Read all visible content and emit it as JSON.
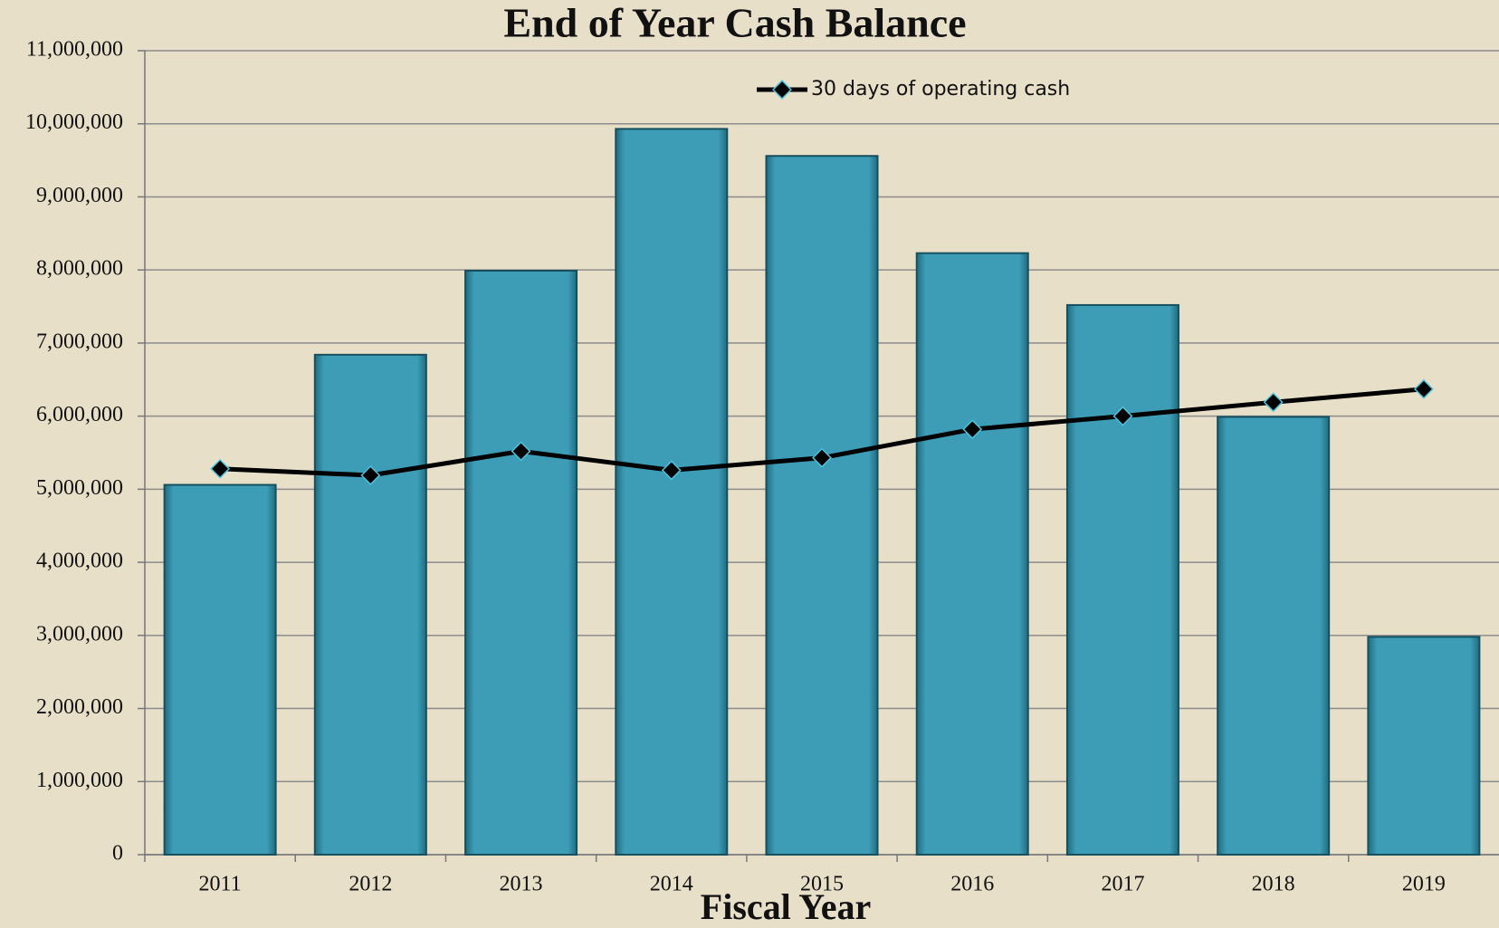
{
  "chart_data": {
    "type": "bar",
    "title": "End of Year Cash Balance",
    "x_label": "Fiscal Year",
    "categories": [
      "2011",
      "2012",
      "2013",
      "2014",
      "2015",
      "2016",
      "2017",
      "2018",
      "2019"
    ],
    "series": [
      {
        "type": "bar",
        "color": "#3d9db6",
        "values": [
          5060000,
          6840000,
          7990000,
          9930000,
          9560000,
          8230000,
          7520000,
          5990000,
          2980000
        ]
      },
      {
        "type": "line",
        "name": "30 days of operating cash",
        "color": "#000000",
        "values": [
          5280000,
          5190000,
          5520000,
          5260000,
          5430000,
          5820000,
          6000000,
          6190000,
          6370000
        ]
      }
    ],
    "ylim": [
      0,
      11000000
    ],
    "yticks": [
      {
        "value": 0,
        "label": "0"
      },
      {
        "value": 1000000,
        "label": "1,000,000"
      },
      {
        "value": 2000000,
        "label": "2,000,000"
      },
      {
        "value": 3000000,
        "label": "3,000,000"
      },
      {
        "value": 4000000,
        "label": "4,000,000"
      },
      {
        "value": 5000000,
        "label": "5,000,000"
      },
      {
        "value": 6000000,
        "label": "6,000,000"
      },
      {
        "value": 7000000,
        "label": "7,000,000"
      },
      {
        "value": 8000000,
        "label": "8,000,000"
      },
      {
        "value": 9000000,
        "label": "9,000,000"
      },
      {
        "value": 10000000,
        "label": "10,000,000"
      },
      {
        "value": 11000000,
        "label": "11,000,000"
      }
    ],
    "grid": true
  }
}
